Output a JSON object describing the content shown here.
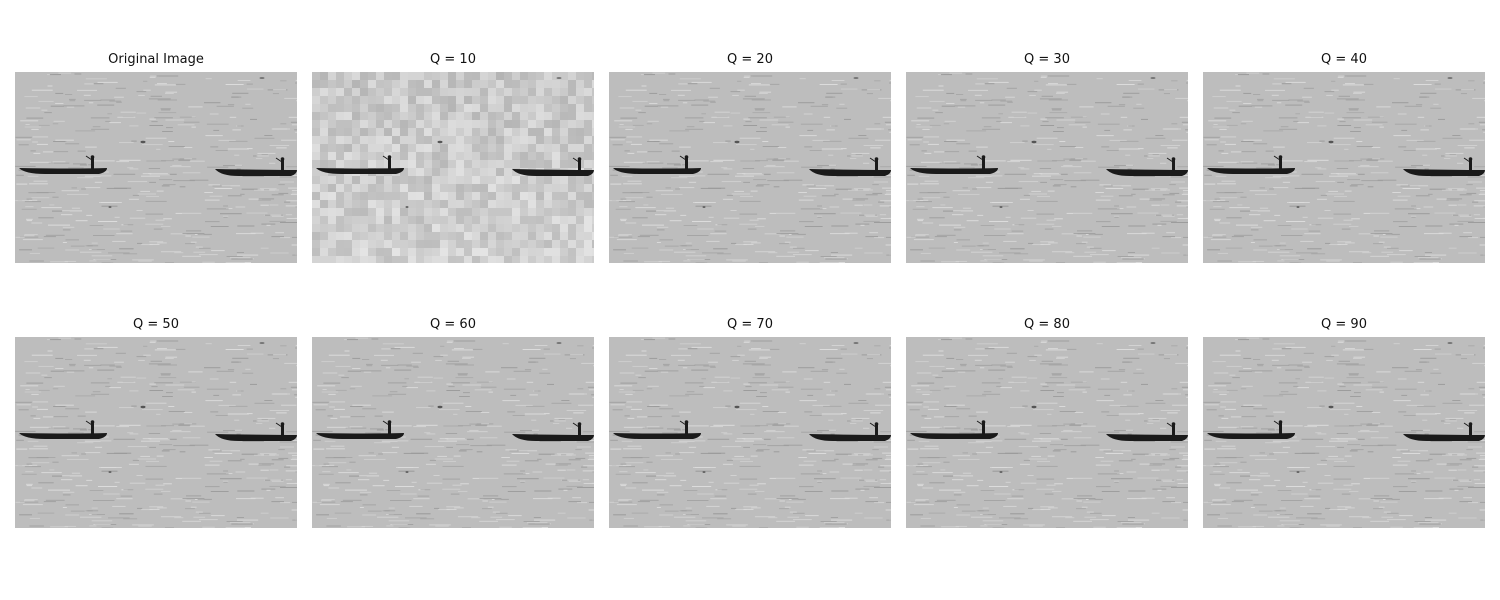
{
  "panels": [
    {
      "title": "Original Image",
      "variant": "original"
    },
    {
      "title": "Q = 10",
      "variant": "blocky"
    },
    {
      "title": "Q = 20",
      "variant": "normal"
    },
    {
      "title": "Q = 30",
      "variant": "normal"
    },
    {
      "title": "Q = 40",
      "variant": "normal"
    },
    {
      "title": "Q = 50",
      "variant": "normal"
    },
    {
      "title": "Q = 60",
      "variant": "normal"
    },
    {
      "title": "Q = 70",
      "variant": "normal"
    },
    {
      "title": "Q = 80",
      "variant": "normal"
    },
    {
      "title": "Q = 90",
      "variant": "normal"
    }
  ],
  "colors": {
    "water": "#bdbdbd",
    "water_light": "#dcdcdc",
    "water_dark": "#9a9a9a",
    "boat": "#1a1a1a"
  }
}
